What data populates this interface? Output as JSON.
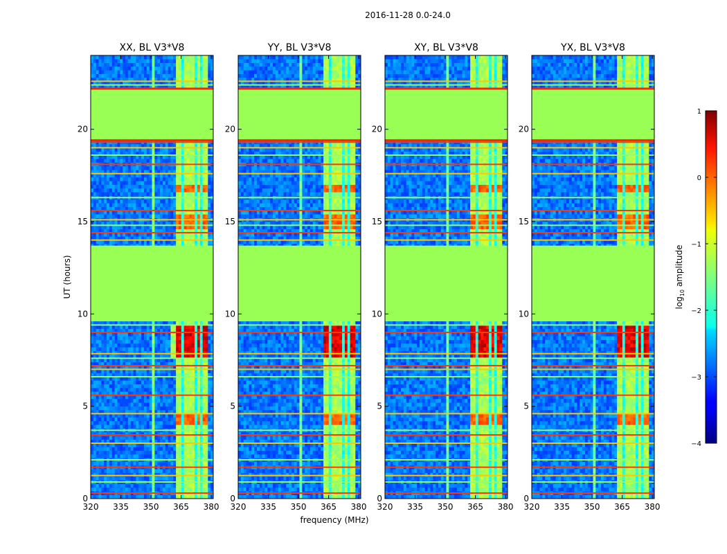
{
  "chart_data": {
    "type": "heatmap",
    "suptitle": "2016-11-28 0.0-24.0",
    "xlabel": "frequency (MHz)",
    "ylabel": "UT (hours)",
    "xlim": [
      320,
      381
    ],
    "ylim": [
      0,
      24
    ],
    "xticks": [
      320,
      335,
      350,
      365,
      380
    ],
    "yticks": [
      0,
      5,
      10,
      15,
      20
    ],
    "colorbar": {
      "label": "log10 amplitude",
      "label_base": "log",
      "label_sub": "10",
      "label_rest": " amplitude",
      "range": [
        -4,
        1
      ],
      "ticks": [
        1,
        0,
        -1,
        -2,
        -3,
        -4
      ],
      "tick_labels": [
        "1",
        "0",
        "−1",
        "−2",
        "−3",
        "−4"
      ],
      "colormap": "jet"
    },
    "blank_intervals_hours": [
      [
        9.6,
        13.7
      ],
      [
        19.4,
        22.2
      ]
    ],
    "panels": [
      {
        "title": "XX, BL V3*V8",
        "pol": "XX"
      },
      {
        "title": "YY, BL V3*V8",
        "pol": "YY"
      },
      {
        "title": "XY, BL V3*V8",
        "pol": "XY"
      },
      {
        "title": "YX, BL V3*V8",
        "pol": "YX"
      }
    ],
    "description_levels": {
      "background": -2.8,
      "blank_fill": -1.2,
      "band_363_378_MHz": -1.3,
      "band_peak_7_9h": 0.2
    }
  },
  "colors": {
    "frame": "#000000",
    "blank_fill": "#99ff55"
  }
}
